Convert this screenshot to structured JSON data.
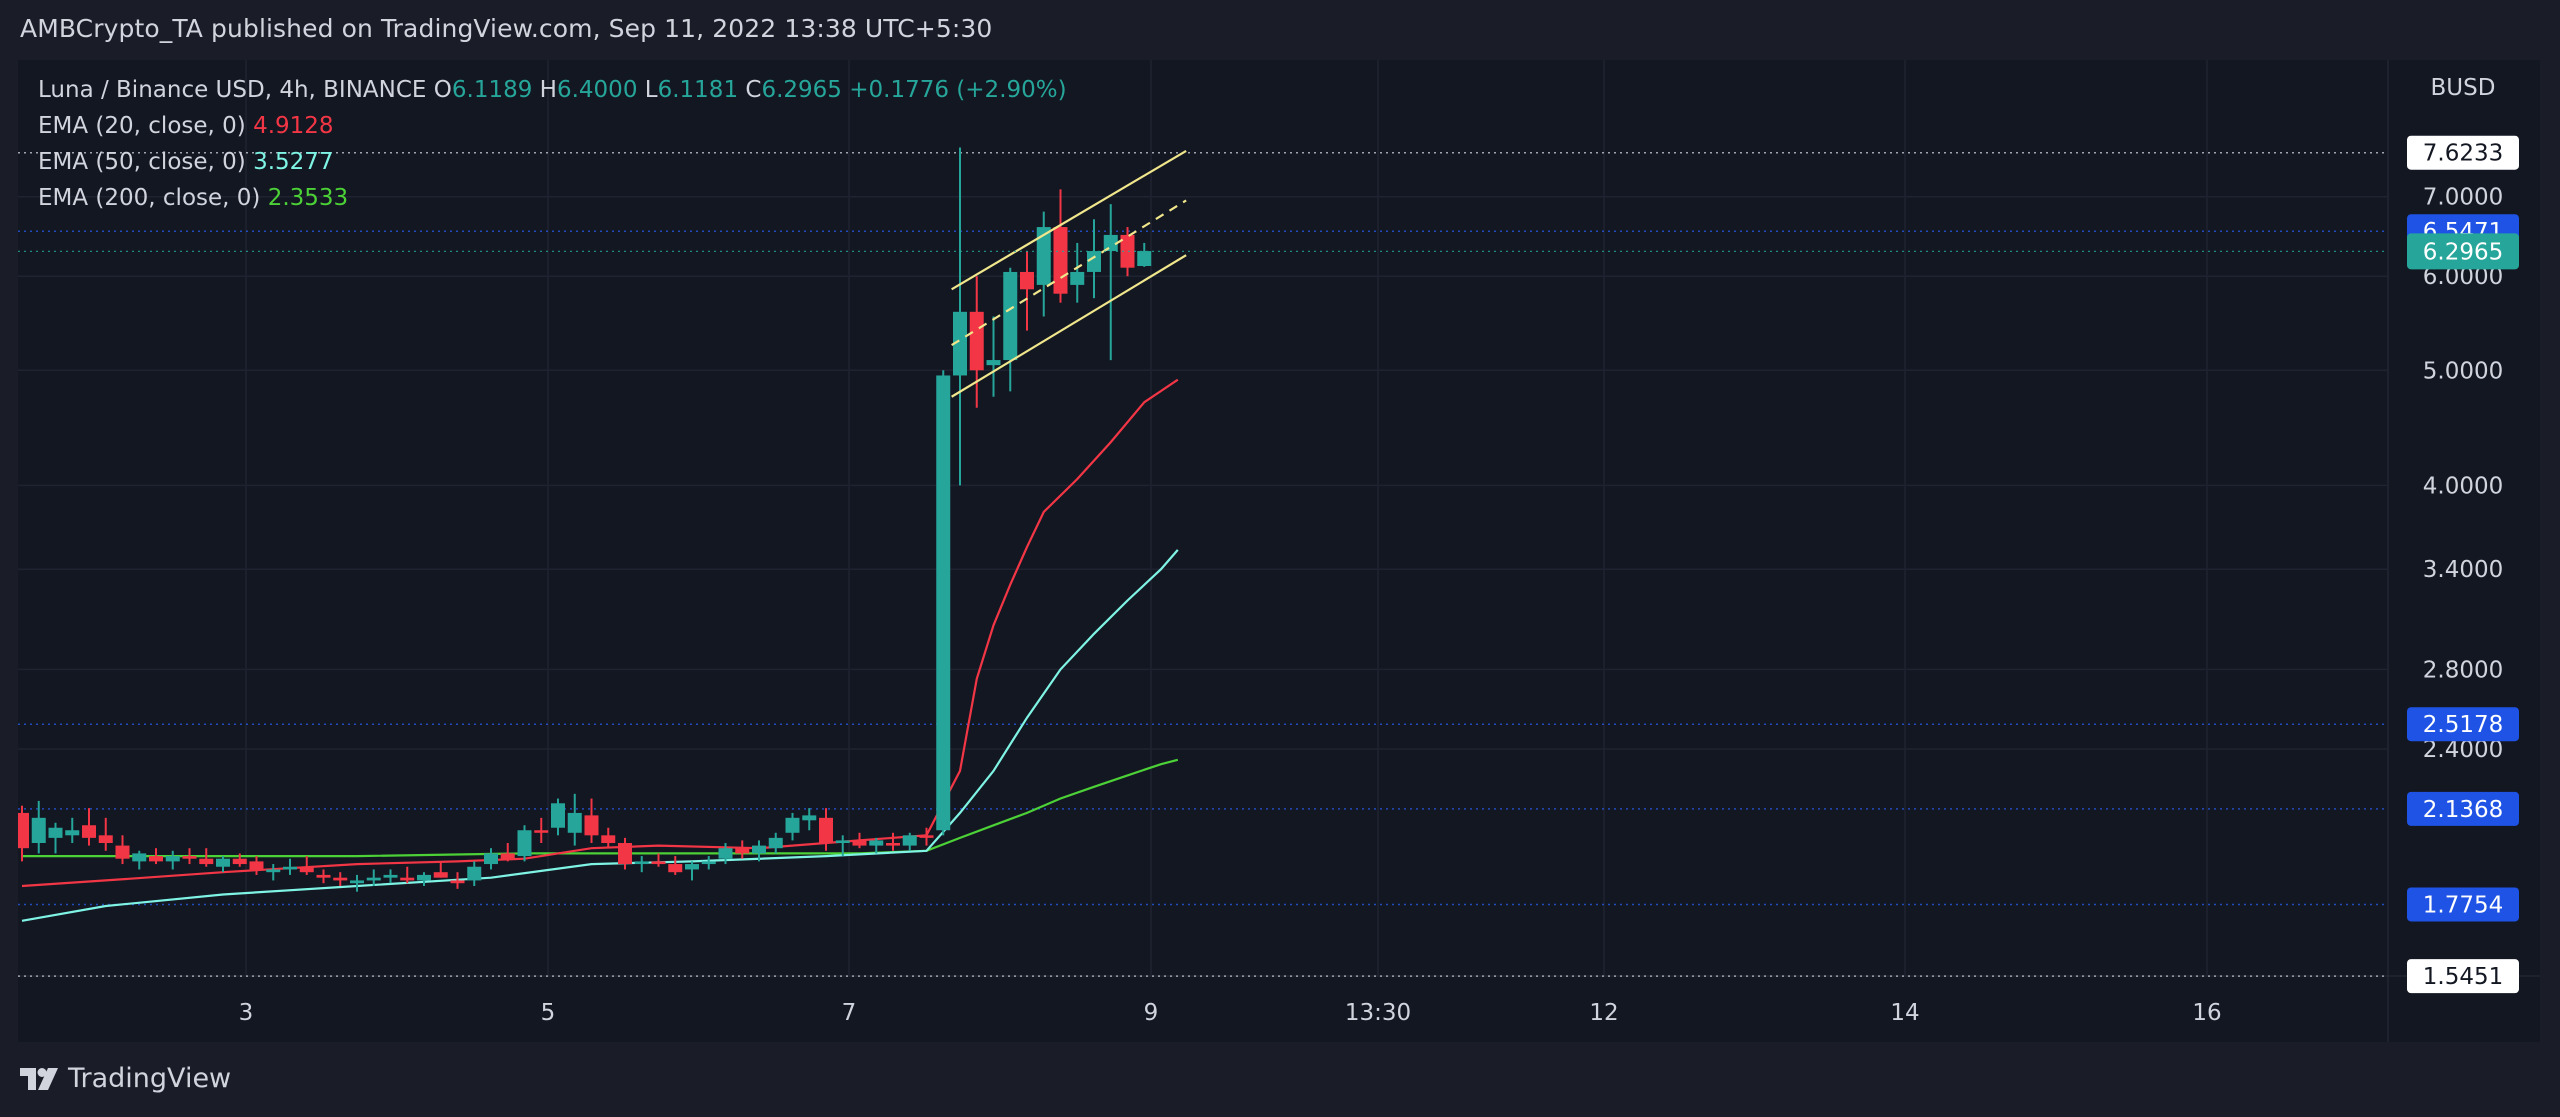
{
  "header": {
    "publish_text": "AMBCrypto_TA published on TradingView.com, Sep 11, 2022 13:38 UTC+5:30"
  },
  "legend": {
    "symbol": "Luna / Binance USD, 4h, BINANCE",
    "open_label": "O",
    "open": "6.1189",
    "high_label": "H",
    "high": "6.4000",
    "low_label": "L",
    "low": "6.1181",
    "close_label": "C",
    "close": "6.2965",
    "change": "+0.1776 (+2.90%)",
    "ema20_label": "EMA (20, close, 0)",
    "ema20_value": "4.9128",
    "ema50_label": "EMA (50, close, 0)",
    "ema50_value": "3.5277",
    "ema200_label": "EMA (200, close, 0)",
    "ema200_value": "2.3533"
  },
  "footer": {
    "brand": "TradingView"
  },
  "colors": {
    "up": "#26a69a",
    "down": "#f23645",
    "ema20": "#f23645",
    "ema50": "#7ff4e5",
    "ema200": "#4cd137",
    "channel": "#f0e68c",
    "level_badge": "#1e53e5"
  },
  "chart_data": {
    "type": "line",
    "title": "Luna / Binance USD, 4h, BINANCE",
    "currency": "BUSD",
    "y_scale": "log",
    "ylim": [
      1.4,
      9.0
    ],
    "x_ticks": [
      "3",
      "5",
      "7",
      "9",
      "13:30",
      "12",
      "14",
      "16"
    ],
    "y_ticks": [
      "7.0000",
      "6.0000",
      "5.0000",
      "4.0000",
      "3.4000",
      "2.8000",
      "2.4000"
    ],
    "horizontal_levels": [
      {
        "value": "7.6233",
        "style": "dotted-white"
      },
      {
        "value": "6.5471",
        "style": "dotted-blue"
      },
      {
        "value": "2.5178",
        "style": "dotted-blue"
      },
      {
        "value": "2.1368",
        "style": "dotted-blue"
      },
      {
        "value": "1.7754",
        "style": "dotted-blue"
      },
      {
        "value": "1.5451",
        "style": "dotted-white"
      }
    ],
    "last_price": "6.2965",
    "candles": [
      [
        2.12,
        2.15,
        1.93,
        1.98
      ],
      [
        2.0,
        2.17,
        1.96,
        2.1
      ],
      [
        2.02,
        2.08,
        1.96,
        2.06
      ],
      [
        2.03,
        2.1,
        2.0,
        2.05
      ],
      [
        2.07,
        2.14,
        1.99,
        2.02
      ],
      [
        2.03,
        2.1,
        1.97,
        2.0
      ],
      [
        1.99,
        2.03,
        1.92,
        1.94
      ],
      [
        1.93,
        1.97,
        1.9,
        1.96
      ],
      [
        1.95,
        1.98,
        1.92,
        1.93
      ],
      [
        1.93,
        1.97,
        1.9,
        1.95
      ],
      [
        1.95,
        1.98,
        1.92,
        1.94
      ],
      [
        1.94,
        1.98,
        1.91,
        1.92
      ],
      [
        1.91,
        1.95,
        1.89,
        1.94
      ],
      [
        1.94,
        1.96,
        1.91,
        1.92
      ],
      [
        1.93,
        1.95,
        1.88,
        1.9
      ],
      [
        1.89,
        1.92,
        1.86,
        1.9
      ],
      [
        1.9,
        1.94,
        1.88,
        1.91
      ],
      [
        1.91,
        1.95,
        1.88,
        1.89
      ],
      [
        1.88,
        1.9,
        1.85,
        1.87
      ],
      [
        1.87,
        1.89,
        1.84,
        1.86
      ],
      [
        1.85,
        1.88,
        1.82,
        1.86
      ],
      [
        1.86,
        1.9,
        1.84,
        1.87
      ],
      [
        1.87,
        1.9,
        1.85,
        1.88
      ],
      [
        1.87,
        1.91,
        1.85,
        1.86
      ],
      [
        1.86,
        1.89,
        1.84,
        1.88
      ],
      [
        1.89,
        1.93,
        1.87,
        1.87
      ],
      [
        1.86,
        1.89,
        1.83,
        1.85
      ],
      [
        1.86,
        1.93,
        1.84,
        1.91
      ],
      [
        1.92,
        1.98,
        1.9,
        1.96
      ],
      [
        1.96,
        2.0,
        1.93,
        1.94
      ],
      [
        1.95,
        2.07,
        1.93,
        2.05
      ],
      [
        2.05,
        2.1,
        2.0,
        2.04
      ],
      [
        2.06,
        2.18,
        2.03,
        2.16
      ],
      [
        2.04,
        2.2,
        1.99,
        2.12
      ],
      [
        2.11,
        2.18,
        2.0,
        2.03
      ],
      [
        2.03,
        2.06,
        1.98,
        2.0
      ],
      [
        2.0,
        2.02,
        1.9,
        1.92
      ],
      [
        1.92,
        1.95,
        1.89,
        1.93
      ],
      [
        1.93,
        1.96,
        1.91,
        1.92
      ],
      [
        1.92,
        1.95,
        1.88,
        1.89
      ],
      [
        1.9,
        1.93,
        1.86,
        1.92
      ],
      [
        1.92,
        1.95,
        1.9,
        1.93
      ],
      [
        1.94,
        2.0,
        1.92,
        1.98
      ],
      [
        1.98,
        2.01,
        1.94,
        1.96
      ],
      [
        1.96,
        2.01,
        1.93,
        1.99
      ],
      [
        1.98,
        2.04,
        1.96,
        2.02
      ],
      [
        2.04,
        2.12,
        2.01,
        2.1
      ],
      [
        2.09,
        2.14,
        2.05,
        2.11
      ],
      [
        2.1,
        2.14,
        1.97,
        2.0
      ],
      [
        2.0,
        2.03,
        1.95,
        2.01
      ],
      [
        2.01,
        2.04,
        1.98,
        1.99
      ],
      [
        1.99,
        2.02,
        1.96,
        2.01
      ],
      [
        2.0,
        2.04,
        1.97,
        1.99
      ],
      [
        1.99,
        2.04,
        1.97,
        2.03
      ],
      [
        2.03,
        2.06,
        1.99,
        2.02
      ],
      [
        2.05,
        5.0,
        2.03,
        4.95
      ],
      [
        4.95,
        7.7,
        4.0,
        5.6
      ],
      [
        5.6,
        6.0,
        4.65,
        5.0
      ],
      [
        5.05,
        5.55,
        4.75,
        5.1
      ],
      [
        5.1,
        6.1,
        4.8,
        6.05
      ],
      [
        6.05,
        6.3,
        5.4,
        5.85
      ],
      [
        5.9,
        6.8,
        5.55,
        6.6
      ],
      [
        6.6,
        7.1,
        5.7,
        5.8
      ],
      [
        5.9,
        6.4,
        5.7,
        6.05
      ],
      [
        6.05,
        6.7,
        5.75,
        6.3
      ],
      [
        6.3,
        6.9,
        5.1,
        6.5
      ],
      [
        6.5,
        6.6,
        6.0,
        6.1
      ],
      [
        6.12,
        6.4,
        6.11,
        6.3
      ]
    ],
    "ema20_path": [
      [
        0,
        1.84
      ],
      [
        5,
        1.86
      ],
      [
        12,
        1.89
      ],
      [
        20,
        1.92
      ],
      [
        26,
        1.93
      ],
      [
        30,
        1.94
      ],
      [
        34,
        1.98
      ],
      [
        38,
        1.99
      ],
      [
        44,
        1.98
      ],
      [
        50,
        2.01
      ],
      [
        54,
        2.03
      ],
      [
        56,
        2.3
      ],
      [
        57,
        2.75
      ],
      [
        58,
        3.05
      ],
      [
        59,
        3.3
      ],
      [
        60,
        3.55
      ],
      [
        61,
        3.8
      ],
      [
        63,
        4.05
      ],
      [
        65,
        4.35
      ],
      [
        67,
        4.7
      ],
      [
        69,
        4.91
      ]
    ],
    "ema50_path": [
      [
        0,
        1.72
      ],
      [
        5,
        1.77
      ],
      [
        12,
        1.81
      ],
      [
        20,
        1.84
      ],
      [
        28,
        1.87
      ],
      [
        34,
        1.92
      ],
      [
        40,
        1.93
      ],
      [
        48,
        1.95
      ],
      [
        54,
        1.97
      ],
      [
        56,
        2.12
      ],
      [
        58,
        2.3
      ],
      [
        60,
        2.55
      ],
      [
        62,
        2.8
      ],
      [
        64,
        3.0
      ],
      [
        66,
        3.2
      ],
      [
        68,
        3.4
      ],
      [
        69,
        3.53
      ]
    ],
    "ema200_path": [
      [
        0,
        1.95
      ],
      [
        10,
        1.95
      ],
      [
        20,
        1.95
      ],
      [
        30,
        1.96
      ],
      [
        40,
        1.96
      ],
      [
        50,
        1.96
      ],
      [
        54,
        1.97
      ],
      [
        56,
        2.02
      ],
      [
        58,
        2.07
      ],
      [
        60,
        2.12
      ],
      [
        62,
        2.18
      ],
      [
        64,
        2.23
      ],
      [
        66,
        2.28
      ],
      [
        68,
        2.33
      ],
      [
        69,
        2.35
      ]
    ],
    "channel": {
      "upper": [
        [
          55.5,
          5.85
        ],
        [
          69.5,
          7.65
        ]
      ],
      "middle": [
        [
          55.5,
          5.25
        ],
        [
          69.5,
          6.95
        ]
      ],
      "lower": [
        [
          55.5,
          4.75
        ],
        [
          69.5,
          6.25
        ]
      ]
    }
  }
}
